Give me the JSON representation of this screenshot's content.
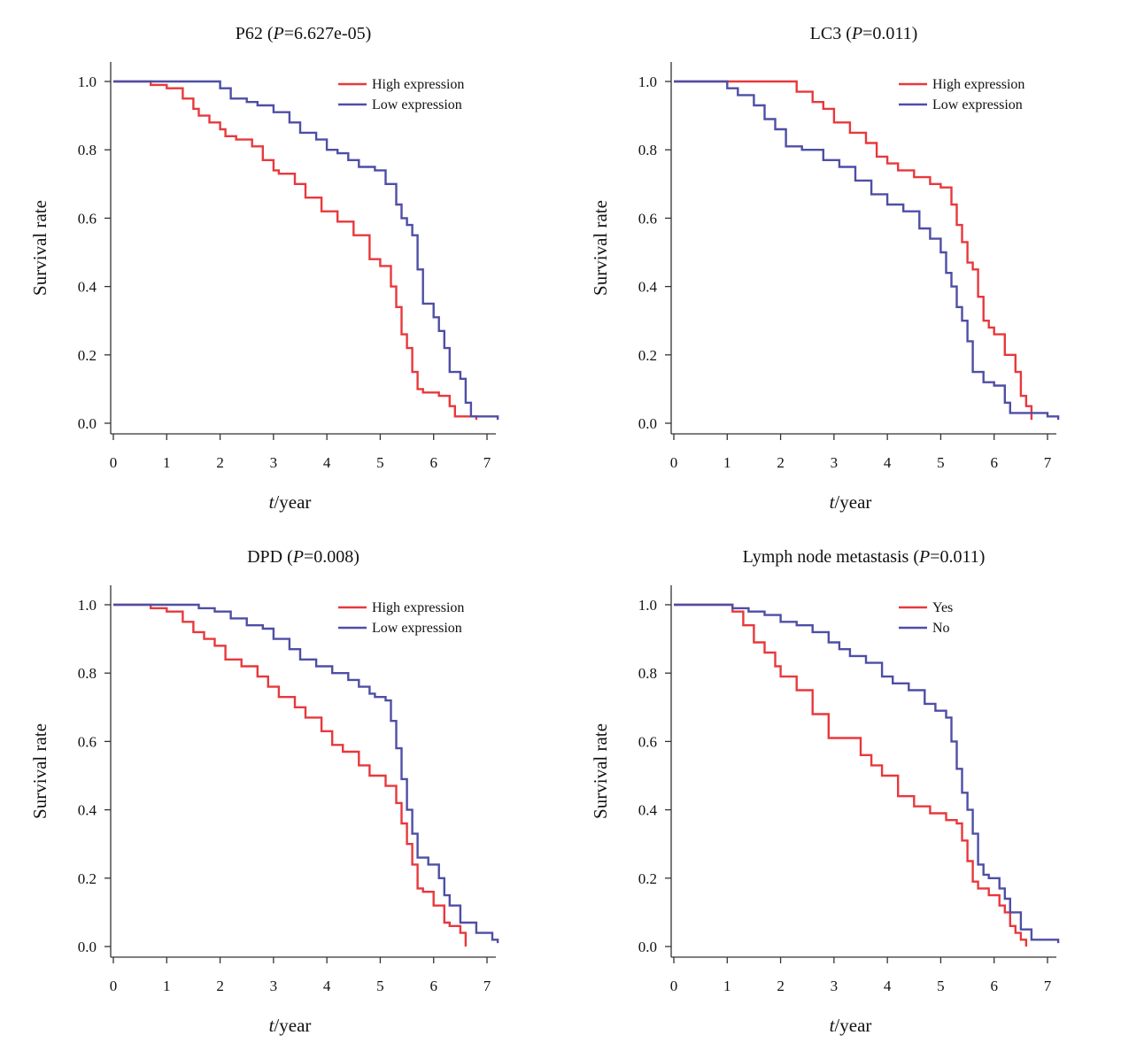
{
  "colors": {
    "red": "#e8383c",
    "blue": "#4e4ea6",
    "axis": "#333333"
  },
  "chart_data": [
    {
      "type": "line",
      "title_main": "P62 (",
      "title_italic": "P",
      "title_rest": "=6.627e-05)",
      "xlabel_italic": "t",
      "xlabel_rest": "/year",
      "ylabel": "Survival rate",
      "xlim": [
        0,
        7
      ],
      "ylim": [
        0,
        1
      ],
      "xticks": [
        "0",
        "1",
        "2",
        "3",
        "4",
        "5",
        "6",
        "7"
      ],
      "yticks": [
        "0.0",
        "0.2",
        "0.4",
        "0.6",
        "0.8",
        "1.0"
      ],
      "legend_position": "top-right",
      "series": [
        {
          "name": "High expression",
          "color": "#e8383c",
          "x": [
            0,
            0.7,
            1.0,
            1.3,
            1.5,
            1.6,
            1.8,
            2.0,
            2.1,
            2.3,
            2.6,
            2.8,
            3.0,
            3.1,
            3.4,
            3.6,
            3.9,
            4.2,
            4.5,
            4.8,
            5.0,
            5.2,
            5.3,
            5.4,
            5.5,
            5.6,
            5.7,
            5.8,
            6.1,
            6.3,
            6.4,
            6.6,
            6.8
          ],
          "y": [
            1.0,
            0.99,
            0.98,
            0.95,
            0.92,
            0.9,
            0.88,
            0.86,
            0.84,
            0.83,
            0.81,
            0.77,
            0.74,
            0.73,
            0.7,
            0.66,
            0.62,
            0.59,
            0.55,
            0.48,
            0.46,
            0.4,
            0.34,
            0.26,
            0.22,
            0.15,
            0.1,
            0.09,
            0.08,
            0.05,
            0.02,
            0.02,
            0.01
          ]
        },
        {
          "name": "Low expression",
          "color": "#4e4ea6",
          "x": [
            0,
            1.9,
            2.0,
            2.2,
            2.5,
            2.7,
            3.0,
            3.3,
            3.5,
            3.8,
            4.0,
            4.2,
            4.4,
            4.6,
            4.8,
            4.9,
            5.1,
            5.3,
            5.4,
            5.5,
            5.6,
            5.7,
            5.8,
            6.0,
            6.1,
            6.2,
            6.3,
            6.5,
            6.6,
            6.7,
            7.0,
            7.2
          ],
          "y": [
            1.0,
            1.0,
            0.98,
            0.95,
            0.94,
            0.93,
            0.91,
            0.88,
            0.85,
            0.83,
            0.8,
            0.79,
            0.77,
            0.75,
            0.75,
            0.74,
            0.7,
            0.64,
            0.6,
            0.58,
            0.55,
            0.45,
            0.35,
            0.31,
            0.27,
            0.22,
            0.15,
            0.13,
            0.06,
            0.02,
            0.02,
            0.01
          ]
        }
      ]
    },
    {
      "type": "line",
      "title_main": "LC3 (",
      "title_italic": "P",
      "title_rest": "=0.011)",
      "xlabel_italic": "t",
      "xlabel_rest": "/year",
      "ylabel": "Survival rate",
      "xlim": [
        0,
        7
      ],
      "ylim": [
        0,
        1
      ],
      "xticks": [
        "0",
        "1",
        "2",
        "3",
        "4",
        "5",
        "6",
        "7"
      ],
      "yticks": [
        "0.0",
        "0.2",
        "0.4",
        "0.6",
        "0.8",
        "1.0"
      ],
      "legend_position": "top-right",
      "series": [
        {
          "name": "High expression",
          "color": "#e8383c",
          "x": [
            0,
            2.1,
            2.3,
            2.6,
            2.8,
            3.0,
            3.3,
            3.6,
            3.8,
            4.0,
            4.2,
            4.5,
            4.8,
            5.0,
            5.2,
            5.3,
            5.4,
            5.5,
            5.6,
            5.7,
            5.8,
            5.9,
            6.0,
            6.2,
            6.4,
            6.5,
            6.6,
            6.7
          ],
          "y": [
            1.0,
            1.0,
            0.97,
            0.94,
            0.92,
            0.88,
            0.85,
            0.82,
            0.78,
            0.76,
            0.74,
            0.72,
            0.7,
            0.69,
            0.64,
            0.58,
            0.53,
            0.47,
            0.45,
            0.37,
            0.3,
            0.28,
            0.26,
            0.2,
            0.15,
            0.08,
            0.05,
            0.01
          ]
        },
        {
          "name": "Low expression",
          "color": "#4e4ea6",
          "x": [
            0,
            0.7,
            1.0,
            1.2,
            1.5,
            1.7,
            1.9,
            2.1,
            2.4,
            2.8,
            3.1,
            3.4,
            3.7,
            4.0,
            4.3,
            4.6,
            4.8,
            5.0,
            5.1,
            5.2,
            5.3,
            5.4,
            5.5,
            5.6,
            5.8,
            6.0,
            6.2,
            6.3,
            6.5,
            7.0,
            7.2
          ],
          "y": [
            1.0,
            1.0,
            0.98,
            0.96,
            0.93,
            0.89,
            0.86,
            0.81,
            0.8,
            0.77,
            0.75,
            0.71,
            0.67,
            0.64,
            0.62,
            0.57,
            0.54,
            0.5,
            0.44,
            0.4,
            0.34,
            0.3,
            0.24,
            0.15,
            0.12,
            0.11,
            0.06,
            0.03,
            0.03,
            0.02,
            0.01
          ]
        }
      ]
    },
    {
      "type": "line",
      "title_main": "DPD (",
      "title_italic": "P",
      "title_rest": "=0.008)",
      "xlabel_italic": "t",
      "xlabel_rest": "/year",
      "ylabel": "Survival rate",
      "xlim": [
        0,
        7
      ],
      "ylim": [
        0,
        1
      ],
      "xticks": [
        "0",
        "1",
        "2",
        "3",
        "4",
        "5",
        "6",
        "7"
      ],
      "yticks": [
        "0.0",
        "0.2",
        "0.4",
        "0.6",
        "0.8",
        "1.0"
      ],
      "legend_position": "top-right",
      "series": [
        {
          "name": "High expression",
          "color": "#e8383c",
          "x": [
            0,
            0.7,
            1.0,
            1.3,
            1.5,
            1.7,
            1.9,
            2.1,
            2.4,
            2.7,
            2.9,
            3.1,
            3.4,
            3.6,
            3.9,
            4.1,
            4.3,
            4.6,
            4.8,
            5.1,
            5.3,
            5.4,
            5.5,
            5.6,
            5.7,
            5.8,
            6.0,
            6.2,
            6.3,
            6.5,
            6.6
          ],
          "y": [
            1.0,
            0.99,
            0.98,
            0.95,
            0.92,
            0.9,
            0.88,
            0.84,
            0.82,
            0.79,
            0.76,
            0.73,
            0.7,
            0.67,
            0.63,
            0.59,
            0.57,
            0.53,
            0.5,
            0.47,
            0.42,
            0.36,
            0.3,
            0.24,
            0.17,
            0.16,
            0.12,
            0.07,
            0.06,
            0.04,
            0.0
          ]
        },
        {
          "name": "Low expression",
          "color": "#4e4ea6",
          "x": [
            0,
            1.5,
            1.6,
            1.9,
            2.2,
            2.5,
            2.8,
            3.0,
            3.3,
            3.5,
            3.8,
            4.1,
            4.4,
            4.6,
            4.8,
            4.9,
            5.1,
            5.2,
            5.3,
            5.4,
            5.5,
            5.6,
            5.7,
            5.9,
            6.1,
            6.2,
            6.3,
            6.5,
            6.8,
            7.1,
            7.2
          ],
          "y": [
            1.0,
            1.0,
            0.99,
            0.98,
            0.96,
            0.94,
            0.93,
            0.9,
            0.87,
            0.84,
            0.82,
            0.8,
            0.78,
            0.76,
            0.74,
            0.73,
            0.72,
            0.66,
            0.58,
            0.49,
            0.4,
            0.33,
            0.26,
            0.24,
            0.2,
            0.15,
            0.12,
            0.07,
            0.04,
            0.02,
            0.01
          ]
        }
      ]
    },
    {
      "type": "line",
      "title_main": "Lymph node metastasis (",
      "title_italic": "P",
      "title_rest": "=0.011)",
      "xlabel_italic": "t",
      "xlabel_rest": "/year",
      "ylabel": "Survival rate",
      "xlim": [
        0,
        7
      ],
      "ylim": [
        0,
        1
      ],
      "xticks": [
        "0",
        "1",
        "2",
        "3",
        "4",
        "5",
        "6",
        "7"
      ],
      "yticks": [
        "0.0",
        "0.2",
        "0.4",
        "0.6",
        "0.8",
        "1.0"
      ],
      "legend_position": "top-right",
      "series": [
        {
          "name": "Yes",
          "color": "#e8383c",
          "x": [
            0,
            1.1,
            1.3,
            1.5,
            1.7,
            1.9,
            2.0,
            2.3,
            2.6,
            2.9,
            3.3,
            3.5,
            3.7,
            3.9,
            4.2,
            4.5,
            4.8,
            5.1,
            5.3,
            5.4,
            5.5,
            5.6,
            5.7,
            5.9,
            6.1,
            6.2,
            6.3,
            6.4,
            6.5,
            6.6
          ],
          "y": [
            1.0,
            0.98,
            0.94,
            0.89,
            0.86,
            0.82,
            0.79,
            0.75,
            0.68,
            0.61,
            0.61,
            0.56,
            0.53,
            0.5,
            0.44,
            0.41,
            0.39,
            0.37,
            0.36,
            0.31,
            0.25,
            0.19,
            0.17,
            0.15,
            0.12,
            0.1,
            0.06,
            0.04,
            0.02,
            0.0
          ]
        },
        {
          "name": "No",
          "color": "#4e4ea6",
          "x": [
            0,
            0.9,
            1.1,
            1.4,
            1.7,
            2.0,
            2.3,
            2.6,
            2.9,
            3.1,
            3.3,
            3.6,
            3.9,
            4.1,
            4.4,
            4.7,
            4.9,
            5.1,
            5.2,
            5.3,
            5.4,
            5.5,
            5.6,
            5.7,
            5.8,
            5.9,
            6.1,
            6.2,
            6.3,
            6.5,
            6.7,
            7.0,
            7.2
          ],
          "y": [
            1.0,
            1.0,
            0.99,
            0.98,
            0.97,
            0.95,
            0.94,
            0.92,
            0.89,
            0.87,
            0.85,
            0.83,
            0.79,
            0.77,
            0.75,
            0.71,
            0.69,
            0.67,
            0.6,
            0.52,
            0.45,
            0.4,
            0.33,
            0.24,
            0.21,
            0.2,
            0.17,
            0.14,
            0.1,
            0.05,
            0.02,
            0.02,
            0.01
          ]
        }
      ]
    }
  ]
}
